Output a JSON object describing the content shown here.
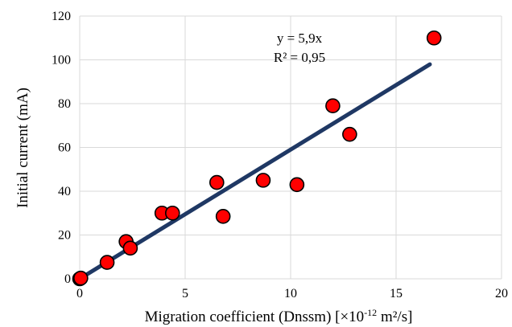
{
  "chart_data": {
    "type": "scatter",
    "title": "",
    "xlabel_main": "Migration coefficient (Dnssm) [×10",
    "xlabel_exp": "-12",
    "xlabel_tail": " m²/s]",
    "ylabel": "Initial current (mA)",
    "xlim": [
      0,
      20
    ],
    "ylim": [
      0,
      120
    ],
    "x_ticks": [
      "0",
      "5",
      "10",
      "15",
      "20"
    ],
    "y_ticks": [
      "0",
      "20",
      "40",
      "60",
      "80",
      "100",
      "120"
    ],
    "grid": true,
    "legend": "none",
    "series": [
      {
        "points": [
          {
            "x": 0,
            "y": 0
          },
          {
            "x": 0.05,
            "y": 0.3
          },
          {
            "x": 1.3,
            "y": 7.5
          },
          {
            "x": 2.2,
            "y": 17
          },
          {
            "x": 2.4,
            "y": 14
          },
          {
            "x": 3.9,
            "y": 30
          },
          {
            "x": 4.4,
            "y": 30
          },
          {
            "x": 6.5,
            "y": 44
          },
          {
            "x": 6.8,
            "y": 28.5
          },
          {
            "x": 8.7,
            "y": 45
          },
          {
            "x": 10.3,
            "y": 43
          },
          {
            "x": 12.0,
            "y": 79
          },
          {
            "x": 12.8,
            "y": 66
          },
          {
            "x": 16.8,
            "y": 110
          }
        ],
        "color": "#ff0000",
        "edge_color": "#000000"
      }
    ],
    "trendline": {
      "slope": 5.9,
      "x_range": [
        0,
        16.6
      ],
      "color": "#1f3864",
      "equation": "y = 5,9x",
      "r_squared": "R² = 0,95"
    }
  }
}
